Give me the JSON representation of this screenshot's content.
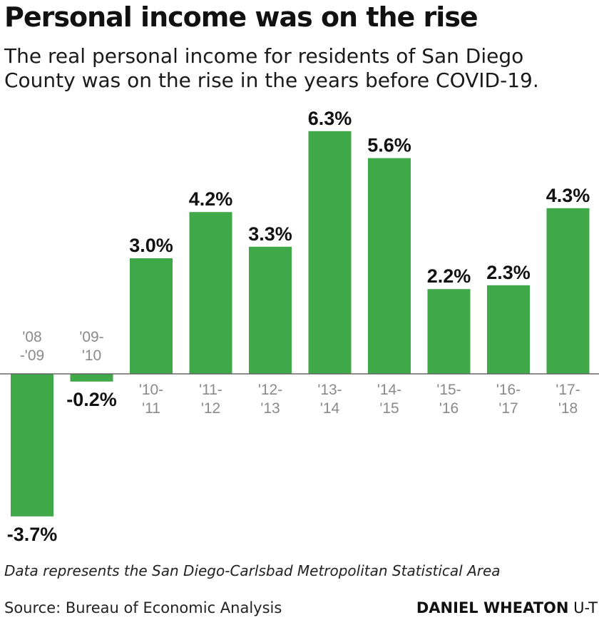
{
  "header": {
    "title": "Personal income was on the rise",
    "subtitle": "The real personal income for residents of San Diego County was on the rise in the years before COVID-19."
  },
  "colors": {
    "bar": "#3fa94a",
    "axis": "#666666"
  },
  "chart_data": {
    "type": "bar",
    "categories": [
      [
        "'08",
        "-'09"
      ],
      [
        "'09-",
        "'10"
      ],
      [
        "'10-",
        "'11"
      ],
      [
        "'11-",
        "'12"
      ],
      [
        "'12-",
        "'13"
      ],
      [
        "'13-",
        "'14"
      ],
      [
        "'14-",
        "'15"
      ],
      [
        "'15-",
        "'16"
      ],
      [
        "'16-",
        "'17"
      ],
      [
        "'17-",
        "'18"
      ]
    ],
    "values": [
      -3.7,
      -0.2,
      3.0,
      4.2,
      3.3,
      6.3,
      5.6,
      2.2,
      2.3,
      4.3
    ],
    "value_labels": [
      "-3.7%",
      "-0.2%",
      "3.0%",
      "4.2%",
      "3.3%",
      "6.3%",
      "5.6%",
      "2.2%",
      "2.3%",
      "4.3%"
    ],
    "ylim": [
      -3.7,
      6.3
    ],
    "grid": false,
    "legend": "none"
  },
  "footer": {
    "note": "Data represents the San Diego-Carlsbad Metropolitan Statistical Area",
    "source": "Source: Bureau of Economic Analysis",
    "credit_name": "DANIEL WHEATON",
    "credit_org": "U-T"
  }
}
